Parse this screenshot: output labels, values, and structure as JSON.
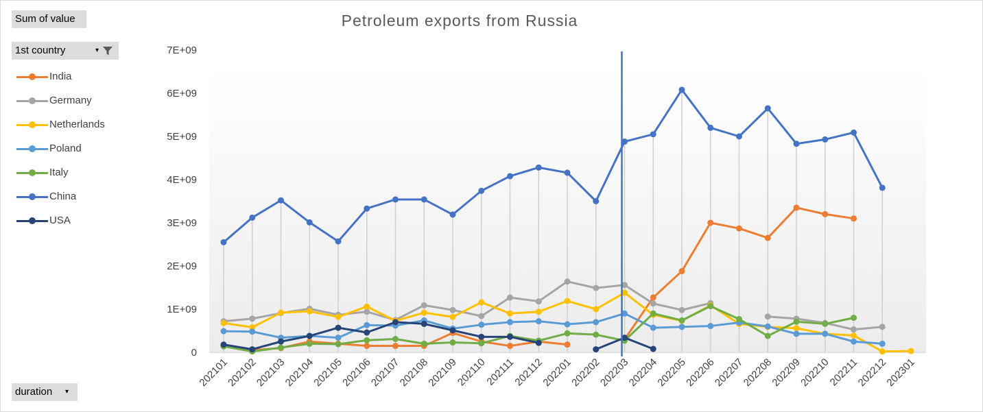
{
  "controls": {
    "value_button": "Sum of value",
    "country_button": "1st country",
    "duration_button": "duration"
  },
  "chart_data": {
    "type": "line",
    "title": "Petroleum exports from Russia",
    "xlabel": "",
    "ylabel": "",
    "ylim": [
      0,
      7000000000
    ],
    "y_ticks": [
      "0",
      "1E+09",
      "2E+09",
      "3E+09",
      "4E+09",
      "5E+09",
      "6E+09",
      "7E+09"
    ],
    "categories": [
      "202101",
      "202102",
      "202103",
      "202104",
      "202105",
      "202106",
      "202107",
      "202108",
      "202109",
      "202110",
      "202111",
      "202112",
      "202201",
      "202202",
      "202203",
      "202204",
      "202205",
      "202206",
      "202207",
      "202208",
      "202209",
      "202210",
      "202211",
      "202212",
      "202301"
    ],
    "vertical_marker_category": "202203",
    "marker_color": "#4472C4",
    "grid": false,
    "drop_lines": true,
    "legend_position": "left",
    "series": [
      {
        "name": "India",
        "color": "#ED7D31",
        "values": [
          150000000,
          50000000,
          100000000,
          250000000,
          200000000,
          150000000,
          150000000,
          150000000,
          450000000,
          250000000,
          150000000,
          250000000,
          180000000,
          null,
          300000000,
          1270000000,
          1880000000,
          3000000000,
          2870000000,
          2650000000,
          3350000000,
          3200000000,
          3100000000,
          null,
          null
        ]
      },
      {
        "name": "Germany",
        "color": "#A5A5A5",
        "values": [
          720000000,
          780000000,
          910000000,
          1010000000,
          870000000,
          940000000,
          750000000,
          1090000000,
          980000000,
          840000000,
          1270000000,
          1180000000,
          1640000000,
          1490000000,
          1560000000,
          1130000000,
          980000000,
          1140000000,
          null,
          830000000,
          780000000,
          680000000,
          530000000,
          590000000,
          null
        ]
      },
      {
        "name": "Netherlands",
        "color": "#FFC000",
        "values": [
          680000000,
          580000000,
          920000000,
          950000000,
          820000000,
          1060000000,
          730000000,
          920000000,
          820000000,
          1160000000,
          900000000,
          940000000,
          1190000000,
          1000000000,
          1380000000,
          870000000,
          730000000,
          1090000000,
          660000000,
          590000000,
          560000000,
          430000000,
          390000000,
          20000000,
          30000000
        ]
      },
      {
        "name": "Poland",
        "color": "#5B9BD5",
        "values": [
          490000000,
          480000000,
          340000000,
          380000000,
          340000000,
          630000000,
          620000000,
          740000000,
          550000000,
          640000000,
          700000000,
          720000000,
          650000000,
          700000000,
          900000000,
          570000000,
          590000000,
          610000000,
          690000000,
          600000000,
          430000000,
          430000000,
          250000000,
          200000000,
          null
        ]
      },
      {
        "name": "Italy",
        "color": "#70AD47",
        "values": [
          140000000,
          20000000,
          110000000,
          200000000,
          190000000,
          280000000,
          310000000,
          200000000,
          230000000,
          210000000,
          380000000,
          270000000,
          440000000,
          410000000,
          270000000,
          900000000,
          740000000,
          1070000000,
          770000000,
          380000000,
          710000000,
          660000000,
          800000000,
          null,
          null
        ]
      },
      {
        "name": "China",
        "color": "#4472C4",
        "values": [
          2550000000,
          3120000000,
          3520000000,
          3010000000,
          2570000000,
          3330000000,
          3540000000,
          3540000000,
          3190000000,
          3740000000,
          4080000000,
          4280000000,
          4160000000,
          3500000000,
          4880000000,
          5050000000,
          6080000000,
          5200000000,
          5000000000,
          5650000000,
          4830000000,
          4930000000,
          5090000000,
          3810000000,
          null
        ]
      },
      {
        "name": "USA",
        "color": "#264478",
        "values": [
          180000000,
          70000000,
          250000000,
          380000000,
          570000000,
          460000000,
          700000000,
          660000000,
          510000000,
          360000000,
          360000000,
          220000000,
          null,
          70000000,
          340000000,
          80000000,
          null,
          null,
          null,
          null,
          null,
          null,
          null,
          null,
          null
        ]
      }
    ]
  }
}
